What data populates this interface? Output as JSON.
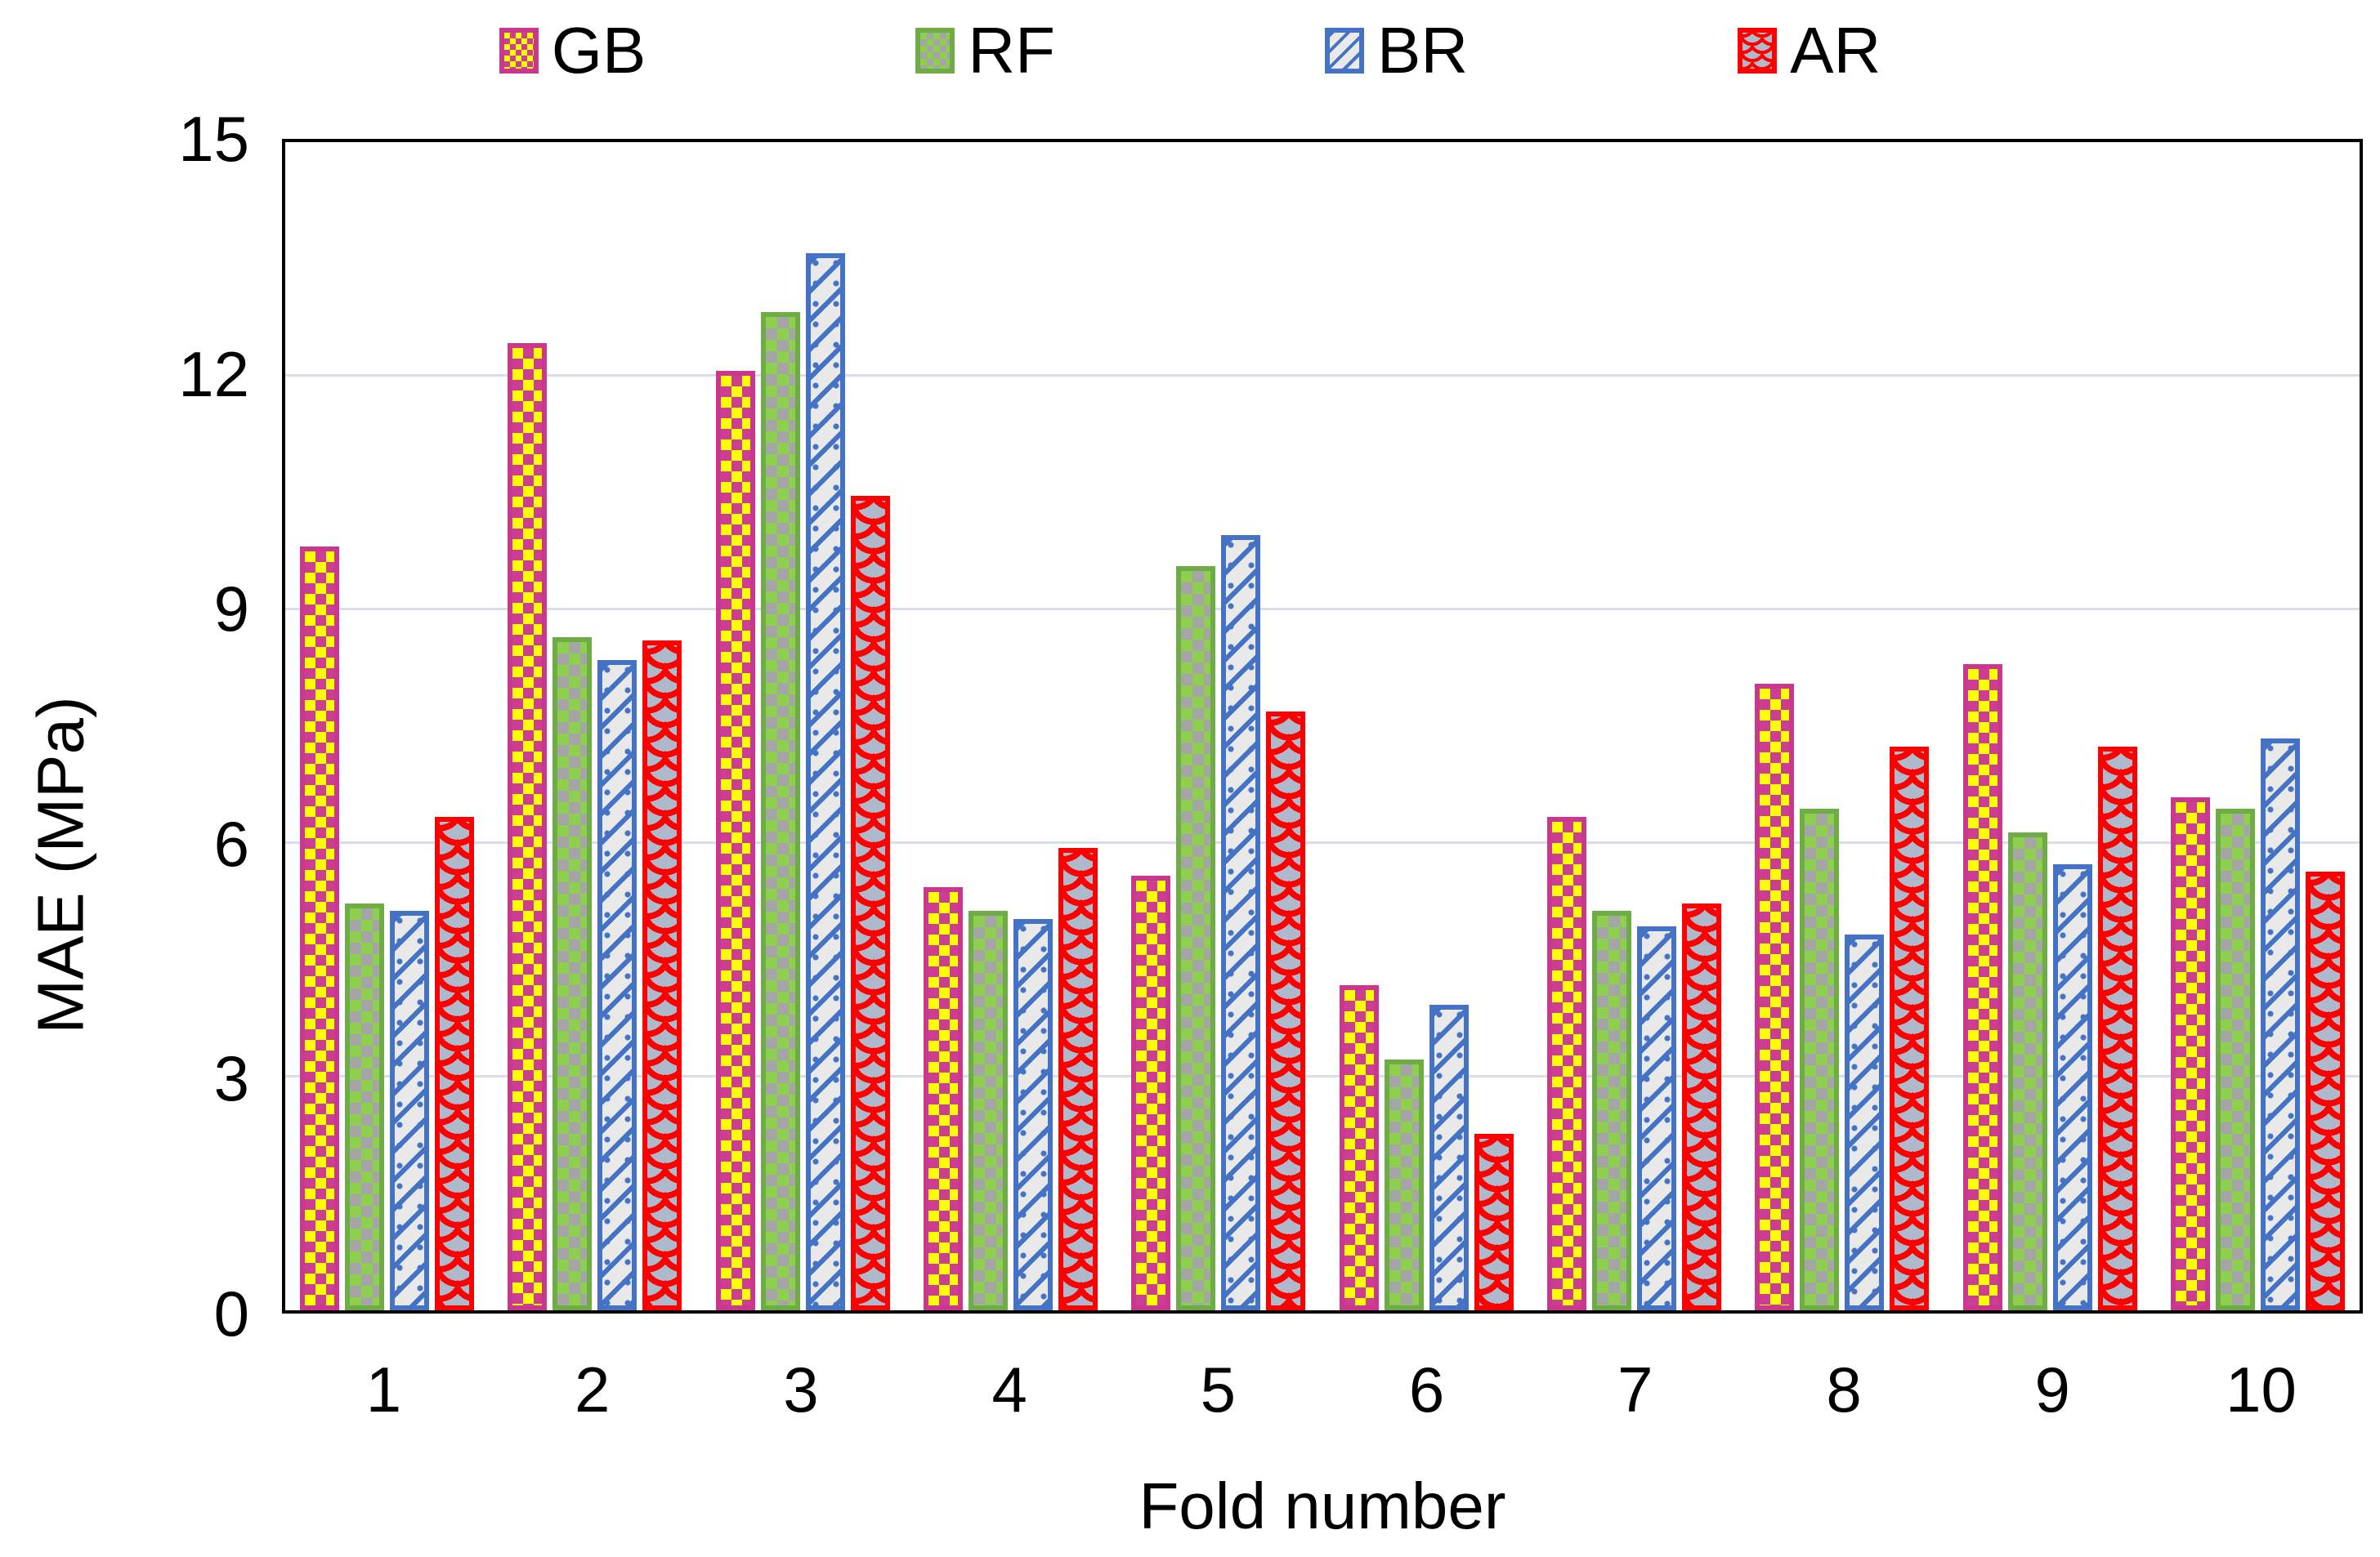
{
  "legend": {
    "items": [
      {
        "label": "GB",
        "series": "GB"
      },
      {
        "label": "RF",
        "series": "RF"
      },
      {
        "label": "BR",
        "series": "BR"
      },
      {
        "label": "AR",
        "series": "AR"
      }
    ]
  },
  "chart_data": {
    "type": "bar",
    "title": "",
    "xlabel": "Fold number",
    "ylabel": "MAE (MPa)",
    "categories": [
      "1",
      "2",
      "3",
      "4",
      "5",
      "6",
      "7",
      "8",
      "9",
      "10"
    ],
    "series": [
      {
        "name": "GB",
        "border_color": "#C9388E",
        "fill": "yellow-magenta-checker",
        "values": [
          9.75,
          12.35,
          12.0,
          5.4,
          5.55,
          4.15,
          6.3,
          8.0,
          8.25,
          6.55
        ]
      },
      {
        "name": "RF",
        "border_color": "#6EAC46",
        "fill": "green-gray-checker",
        "values": [
          5.2,
          8.6,
          12.75,
          5.1,
          9.5,
          3.2,
          5.1,
          6.4,
          6.1,
          6.4
        ]
      },
      {
        "name": "BR",
        "border_color": "#4473C5",
        "fill": "lightgray-blue-diagonal",
        "values": [
          5.1,
          8.3,
          13.5,
          5.0,
          9.9,
          3.9,
          4.9,
          4.8,
          5.7,
          7.3
        ]
      },
      {
        "name": "AR",
        "border_color": "#FE0000",
        "fill": "bluegray-red-scales",
        "values": [
          6.3,
          8.55,
          10.4,
          5.9,
          7.65,
          2.25,
          5.2,
          7.2,
          7.2,
          5.6
        ]
      }
    ],
    "ylim": [
      0,
      15
    ],
    "yticks": [
      0,
      3,
      6,
      9,
      12,
      15
    ],
    "gridlines_at": [
      3,
      6,
      9,
      12
    ],
    "grid": "horizontal",
    "legend_position": "top",
    "gridline_color": "#D9DEE8",
    "axis_color": "#000000",
    "background_color": "#FFFFFF"
  }
}
